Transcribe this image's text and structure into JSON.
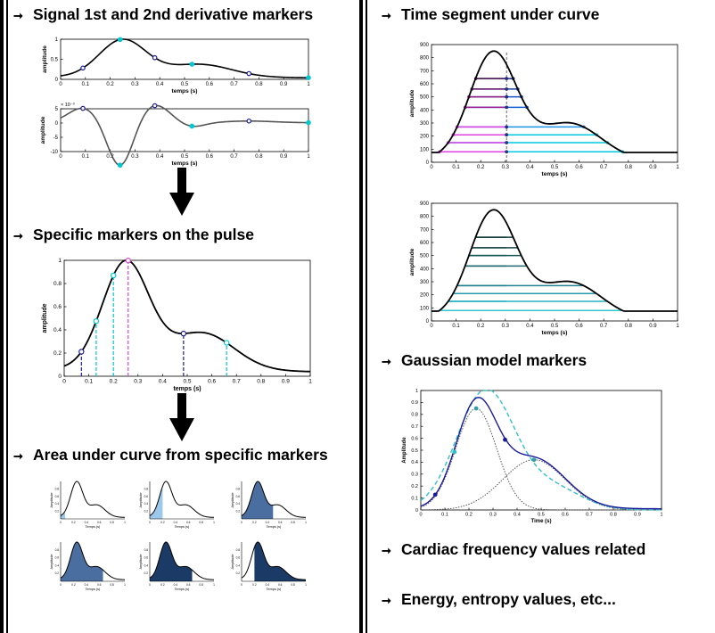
{
  "headings": {
    "derivative": "Signal 1st and 2nd derivative markers",
    "specific": "Specific markers on the pulse",
    "area": "Area under curve from specific markers",
    "time_segment": "Time segment under curve",
    "gaussian": "Gaussian model markers",
    "cardiac": "Cardiac frequency values related",
    "energy": "Energy, entropy values, etc..."
  },
  "arrow_glyph": "➞",
  "axis": {
    "temps": "temps (s)",
    "temps_cap": "Temps (s)",
    "time": "Time (s)",
    "amplitude": "amplitude",
    "amplitude_cap": "Amplitude",
    "exponent": "× 10⁻³"
  },
  "colors": {
    "curve": "#000000",
    "cyan": "#00c8d2",
    "navy": "#1a1a9a",
    "magenta": "#e040e0",
    "light_blue": "#9cc8ec",
    "steel": "#4a6ea0",
    "dark_navy": "#1b3a66"
  },
  "chart_data": [
    {
      "type": "line",
      "ylabel": "amplitude",
      "xlabel": "temps (s)",
      "ylim": [
        0,
        1
      ],
      "xlim": [
        0,
        1
      ],
      "yticks": [
        0,
        0.5,
        1
      ],
      "xticks": [
        0,
        0.1,
        0.2,
        0.3,
        0.4,
        0.5,
        0.6,
        0.7,
        0.8,
        0.9,
        1
      ]
    },
    {
      "type": "line",
      "ylabel": "amplitude",
      "xlabel": "temps (s)",
      "ylim": [
        -10,
        5
      ],
      "xlim": [
        0,
        1
      ],
      "yticks": [
        -10,
        -5,
        0,
        5
      ],
      "xticks": [
        0,
        0.1,
        0.2,
        0.3,
        0.4,
        0.5,
        0.6,
        0.7,
        0.8,
        0.9,
        1
      ]
    },
    {
      "type": "line",
      "ylabel": "amplitude",
      "xlabel": "temps (s)",
      "ylim": [
        0,
        1
      ],
      "xlim": [
        0,
        1
      ],
      "yticks": [
        0,
        0.2,
        0.4,
        0.6,
        0.8,
        1
      ],
      "xticks": [
        0,
        0.1,
        0.2,
        0.3,
        0.4,
        0.5,
        0.6,
        0.7,
        0.8,
        0.9,
        1
      ]
    },
    {
      "type": "line",
      "ylabel": "amplitude",
      "xlabel": "temps (s)",
      "ylim": [
        0,
        900
      ],
      "xlim": [
        0,
        1
      ],
      "yticks": [
        0,
        100,
        200,
        300,
        400,
        500,
        600,
        700,
        800,
        900
      ],
      "xticks": [
        0,
        0.1,
        0.2,
        0.3,
        0.4,
        0.5,
        0.6,
        0.7,
        0.8,
        0.9,
        1
      ]
    },
    {
      "type": "line",
      "ylabel": "amplitude",
      "xlabel": "temps (s)",
      "ylim": [
        0,
        900
      ],
      "xlim": [
        0,
        1
      ],
      "yticks": [
        0,
        100,
        200,
        300,
        400,
        500,
        600,
        700,
        800,
        900
      ],
      "xticks": [
        0,
        0.1,
        0.2,
        0.3,
        0.4,
        0.5,
        0.6,
        0.7,
        0.8,
        0.9,
        1
      ]
    },
    {
      "type": "line",
      "ylabel": "Amplitude",
      "xlabel": "Time (s)",
      "ylim": [
        0,
        1
      ],
      "xlim": [
        0,
        1
      ],
      "yticks": [
        0,
        0.1,
        0.2,
        0.3,
        0.4,
        0.5,
        0.6,
        0.7,
        0.8,
        0.9,
        1
      ],
      "xticks": [
        0,
        0.1,
        0.2,
        0.3,
        0.4,
        0.5,
        0.6,
        0.7,
        0.8,
        0.9,
        1
      ]
    }
  ]
}
